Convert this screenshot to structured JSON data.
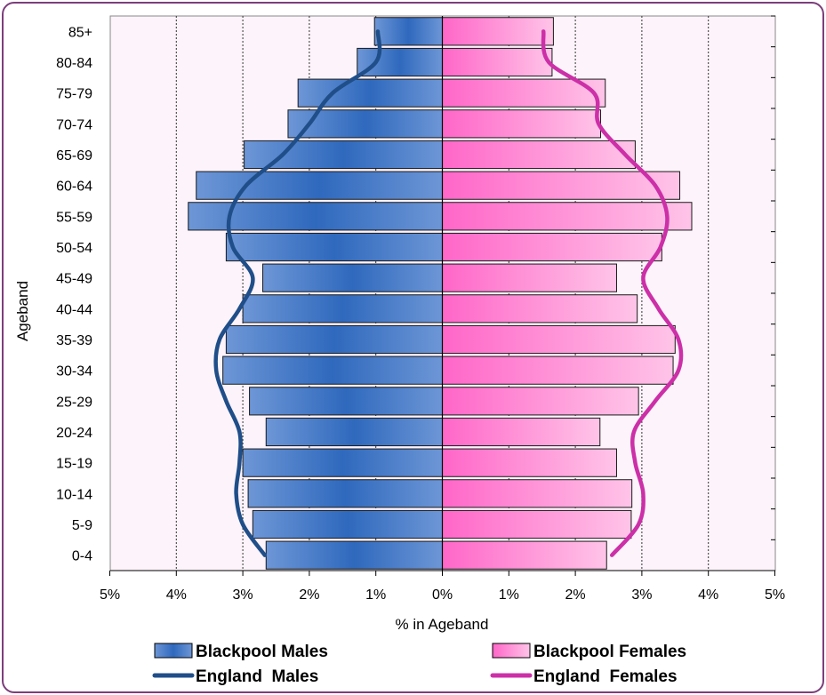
{
  "chart_data": {
    "type": "bar",
    "orientation": "horizontal-population-pyramid",
    "categories": [
      "0-4",
      "5-9",
      "10-14",
      "15-19",
      "20-24",
      "25-29",
      "30-34",
      "35-39",
      "40-44",
      "45-49",
      "50-54",
      "55-59",
      "60-64",
      "65-69",
      "70-74",
      "75-79",
      "80-84",
      "85+"
    ],
    "series": [
      {
        "name": "Blackpool Males",
        "kind": "bar",
        "side": "left",
        "color": "#3a74c4",
        "values": [
          2.65,
          2.85,
          2.92,
          3.0,
          2.65,
          2.9,
          3.3,
          3.25,
          3.0,
          2.7,
          3.25,
          3.82,
          3.7,
          2.98,
          2.32,
          2.17,
          1.28,
          1.02
        ]
      },
      {
        "name": "Blackpool Females",
        "kind": "bar",
        "side": "right",
        "color": "#ff7fcf",
        "values": [
          2.47,
          2.84,
          2.85,
          2.62,
          2.37,
          2.95,
          3.47,
          3.5,
          2.93,
          2.62,
          3.3,
          3.75,
          3.57,
          2.9,
          2.38,
          2.45,
          1.65,
          1.67
        ]
      },
      {
        "name": "England  Males",
        "kind": "line",
        "side": "left",
        "color": "#1f4e89",
        "values": [
          2.67,
          3.0,
          3.1,
          3.05,
          3.05,
          3.25,
          3.4,
          3.35,
          3.05,
          2.85,
          3.15,
          3.2,
          2.95,
          2.4,
          2.0,
          1.65,
          1.0,
          0.97
        ]
      },
      {
        "name": "England  Females",
        "kind": "line",
        "side": "right",
        "color": "#cc2fa8",
        "values": [
          2.55,
          2.95,
          3.02,
          2.9,
          2.88,
          3.2,
          3.55,
          3.55,
          3.25,
          3.02,
          3.28,
          3.38,
          3.2,
          2.75,
          2.35,
          2.28,
          1.6,
          1.52
        ]
      }
    ],
    "xlabel": "% in Ageband",
    "ylabel": "Ageband",
    "xlim": [
      -5,
      5
    ],
    "x_ticks": [
      "5%",
      "4%",
      "3%",
      "2%",
      "1%",
      "0%",
      "1%",
      "2%",
      "3%",
      "4%",
      "5%"
    ],
    "x_tick_values": [
      -5,
      -4,
      -3,
      -2,
      -1,
      0,
      1,
      2,
      3,
      4,
      5
    ],
    "grid": "vertical dashed",
    "legend": "bottom",
    "plot_background": "#fdf3fa"
  }
}
